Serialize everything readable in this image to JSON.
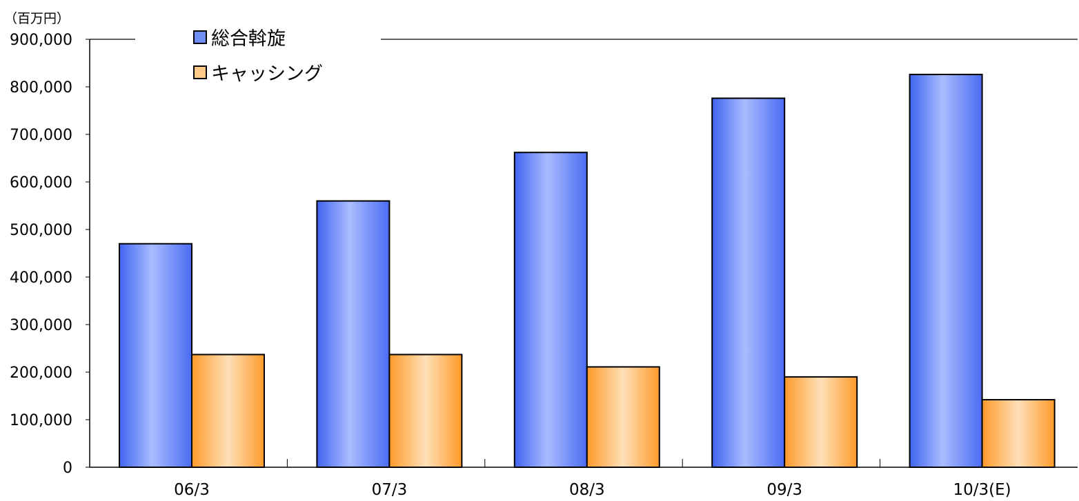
{
  "chart_data": {
    "type": "bar",
    "title": "",
    "unit_label": "（百万円）",
    "xlabel": "",
    "ylabel": "",
    "categories": [
      "06/3",
      "07/3",
      "08/3",
      "09/3",
      "10/3(E)"
    ],
    "series": [
      {
        "name": "総合斡旋",
        "values": [
          470000,
          560000,
          662000,
          776000,
          826000
        ],
        "color": "#6f8ff5"
      },
      {
        "name": "キャッシング",
        "values": [
          237000,
          237000,
          211000,
          190000,
          142000
        ],
        "color": "#ffc98a"
      }
    ],
    "ylim": [
      0,
      900000
    ],
    "yticks": [
      "0",
      "100,000",
      "200,000",
      "300,000",
      "400,000",
      "500,000",
      "600,000",
      "700,000",
      "800,000",
      "900,000"
    ],
    "grid": false,
    "legend_position": "top-left"
  }
}
